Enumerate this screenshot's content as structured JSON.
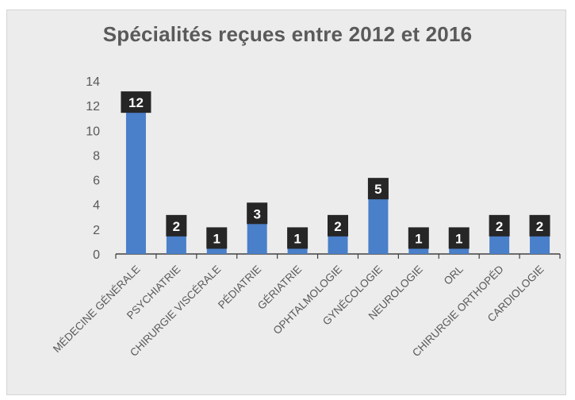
{
  "chart_data": {
    "type": "bar",
    "title": "Spécialités reçues entre 2012 et 2016",
    "categories": [
      "MÉDECINE GÉNÉRALE",
      "PSYCHIATRIE",
      "CHIRURGIE VISCÉRALE",
      "PÉDIATRIE",
      "GÉRIATRIE",
      "OPHTALMOLOGIE",
      "GYNÉCOLOGIE",
      "NEUROLOGIE",
      "ORL",
      "CHIRURGIE ORTHOPÉD",
      "CARDIOLOGIE"
    ],
    "values": [
      12,
      2,
      1,
      3,
      1,
      2,
      5,
      1,
      1,
      2,
      2
    ],
    "ylim": [
      0,
      14
    ],
    "yticks": [
      0,
      2,
      4,
      6,
      8,
      10,
      12,
      14
    ],
    "grid": false,
    "legend": "none",
    "colors": {
      "bar": "#4a7fc9",
      "bar_top": "#7ea6dd",
      "data_label_bg": "#262626",
      "data_label_text": "#ffffff",
      "background": "#ececec",
      "axis": "#404040"
    }
  }
}
